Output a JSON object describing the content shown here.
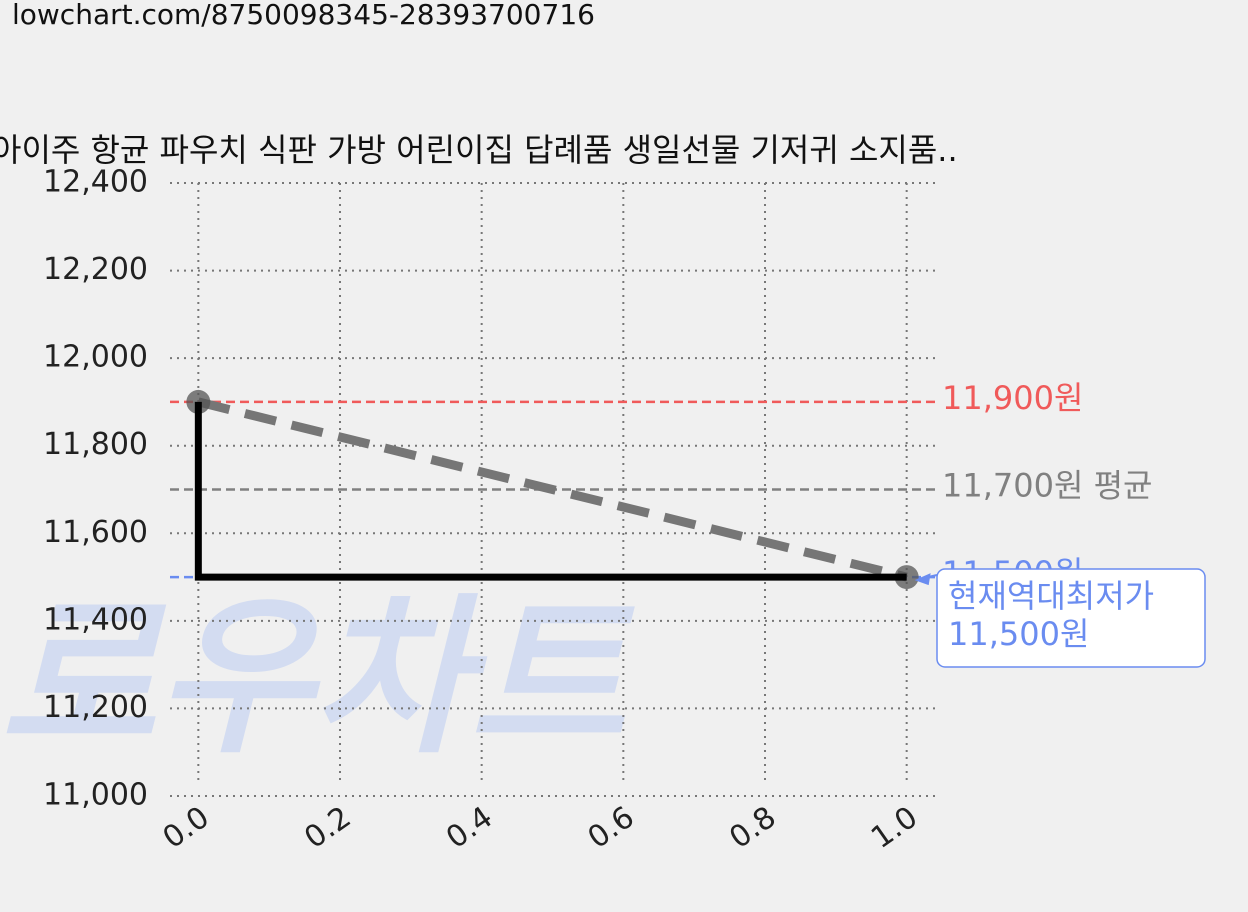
{
  "url": "lowchart.com/8750098345-28393700716",
  "chart_data": {
    "type": "line",
    "title": "아이주 항균 파우치 식판 가방 어린이집 답례품 생일선물 기저귀 소지품..",
    "watermark": "로우차트",
    "xlim": [
      -0.04,
      1.04
    ],
    "xticks": [
      {
        "value": 0,
        "label": "0.0"
      },
      {
        "value": 0.2,
        "label": "0.2"
      },
      {
        "value": 0.4,
        "label": "0.4"
      },
      {
        "value": 0.6,
        "label": "0.6"
      },
      {
        "value": 0.8,
        "label": "0.8"
      },
      {
        "value": 1,
        "label": "1.0"
      }
    ],
    "ylim": [
      11000,
      12400
    ],
    "yticks": [
      {
        "value": 11000,
        "label": "11,000"
      },
      {
        "value": 11200,
        "label": "11,200"
      },
      {
        "value": 11400,
        "label": "11,400"
      },
      {
        "value": 11600,
        "label": "11,600"
      },
      {
        "value": 11800,
        "label": "11,800"
      },
      {
        "value": 12000,
        "label": "12,000"
      },
      {
        "value": 12200,
        "label": "12,200"
      },
      {
        "value": 12400,
        "label": "12,400"
      }
    ],
    "grid": true,
    "series": [
      {
        "x": [
          0,
          1
        ],
        "values": [
          11900,
          11500
        ],
        "color": "#767676",
        "style": "dashed",
        "markers": true
      },
      {
        "x": [
          0,
          0,
          1
        ],
        "values": [
          11900,
          11500,
          11500
        ],
        "color": "#000000",
        "style": "solid",
        "markers": false
      }
    ],
    "hlines": [
      {
        "value": 11900,
        "label": "11,900원",
        "color": "#f05a5a"
      },
      {
        "value": 11700,
        "label": "11,700원 평균",
        "color": "#808080"
      },
      {
        "value": 11500,
        "label": "11,500원",
        "color": "#6a8cf0"
      }
    ],
    "annotation": {
      "x": 1,
      "y": 11500,
      "lines": [
        "현재역대최저가",
        "11,500원"
      ],
      "color": "#6a8cf0"
    }
  }
}
